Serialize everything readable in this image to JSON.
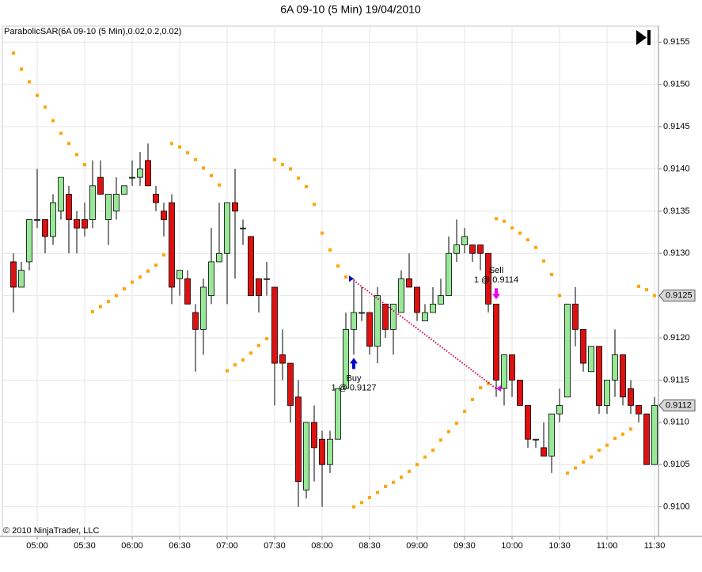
{
  "chart_data": {
    "type": "candlestick",
    "title": "6A 09-10 (5 Min)  19/04/2010",
    "copyright": "© 2010 NinjaTrader, LLC",
    "categories": [
      null,
      null,
      null,
      "05:00",
      null,
      null,
      null,
      null,
      null,
      "05:30",
      null,
      null,
      null,
      null,
      null,
      "06:00",
      null,
      null,
      null,
      null,
      null,
      "06:30",
      null,
      null,
      null,
      null,
      null,
      "07:00",
      null,
      null,
      null,
      null,
      null,
      "07:30",
      null,
      null,
      null,
      null,
      null,
      "08:00",
      null,
      null,
      null,
      null,
      null,
      "08:30",
      null,
      null,
      null,
      null,
      null,
      "09:00",
      null,
      null,
      null,
      null,
      null,
      "09:30",
      null,
      null,
      null,
      null,
      null,
      "10:00",
      null,
      null,
      null,
      null,
      null,
      "10:30",
      null,
      null,
      null,
      null,
      null,
      "11:00",
      null,
      null,
      null,
      null,
      null,
      "11:30"
    ],
    "open": [
      0.9129,
      0.9126,
      0.9129,
      0.9134,
      0.9134,
      0.9132,
      0.9135,
      0.9137,
      0.9134,
      0.9134,
      0.9134,
      0.9139,
      0.9134,
      0.9135,
      0.9137,
      0.9139,
      0.9139,
      0.9141,
      0.9137,
      0.9135,
      0.9136,
      0.9127,
      0.9127,
      0.9123,
      0.9121,
      0.9125,
      0.9129,
      0.913,
      0.9136,
      0.9133,
      0.9132,
      0.9127,
      0.9127,
      0.9126,
      0.9118,
      0.9117,
      0.9113,
      0.9102,
      0.911,
      0.9108,
      0.9105,
      0.9108,
      0.9114,
      0.9121,
      0.9123,
      0.9123,
      0.9119,
      0.9124,
      0.9121,
      0.9123,
      0.9127,
      0.9126,
      0.9122,
      0.9123,
      0.9124,
      0.9125,
      0.913,
      0.9131,
      0.9131,
      0.9131,
      0.913,
      0.9124,
      0.9114,
      0.9118,
      0.9115,
      0.9112,
      0.9108,
      0.9107,
      0.9106,
      0.9111,
      0.9113,
      0.9124,
      0.9121,
      0.9116,
      0.9119,
      0.9112,
      0.9115,
      0.9118,
      0.9114,
      0.9112,
      0.9111,
      0.9105
    ],
    "high": [
      0.913,
      0.9129,
      0.9134,
      0.914,
      0.9134,
      0.9137,
      0.9139,
      0.9138,
      0.9135,
      0.9136,
      0.9141,
      0.9141,
      0.9137,
      0.9139,
      0.9138,
      0.9141,
      0.9142,
      0.9143,
      0.9138,
      0.9136,
      0.9137,
      0.9128,
      0.9128,
      0.9124,
      0.9127,
      0.9133,
      0.9136,
      0.9136,
      0.914,
      0.9134,
      0.9132,
      0.9127,
      0.9129,
      0.9126,
      0.9121,
      0.9117,
      0.9115,
      0.911,
      0.9112,
      0.9109,
      0.9109,
      0.9114,
      0.9123,
      0.9127,
      0.9126,
      0.9123,
      0.9126,
      0.9124,
      0.9124,
      0.9128,
      0.913,
      0.9126,
      0.9124,
      0.9126,
      0.9127,
      0.9132,
      0.9134,
      0.9133,
      0.9131,
      0.9131,
      0.913,
      0.9124,
      0.9118,
      0.9118,
      0.9115,
      0.9112,
      0.9108,
      0.911,
      0.9111,
      0.9114,
      0.9124,
      0.9126,
      0.9121,
      0.9119,
      0.9119,
      0.9115,
      0.9121,
      0.9118,
      0.9115,
      0.9112,
      0.9111,
      0.9113
    ],
    "low": [
      0.9123,
      0.9126,
      0.9128,
      0.9133,
      0.913,
      0.9131,
      0.9134,
      0.913,
      0.913,
      0.9132,
      0.9133,
      0.9137,
      0.9131,
      0.9134,
      0.9137,
      0.9138,
      0.9138,
      0.9138,
      0.9135,
      0.9132,
      0.9124,
      0.9125,
      0.9124,
      0.9116,
      0.9118,
      0.9124,
      0.9129,
      0.9124,
      0.9127,
      0.9131,
      0.9125,
      0.9123,
      0.9125,
      0.9112,
      0.9115,
      0.911,
      0.91,
      0.9101,
      0.9103,
      0.91,
      0.9104,
      0.9108,
      0.9114,
      0.9118,
      0.9122,
      0.9118,
      0.9117,
      0.912,
      0.9118,
      0.9123,
      0.9126,
      0.9122,
      0.9122,
      0.9123,
      0.9124,
      0.9125,
      0.9129,
      0.913,
      0.9129,
      0.9128,
      0.9123,
      0.9113,
      0.9112,
      0.9113,
      0.9112,
      0.9107,
      0.9107,
      0.9106,
      0.9104,
      0.911,
      0.9113,
      0.9119,
      0.9116,
      0.9116,
      0.9111,
      0.9111,
      0.9113,
      0.9112,
      0.9111,
      0.911,
      0.9105,
      0.9105
    ],
    "close": [
      0.9126,
      0.9128,
      0.9134,
      0.9134,
      0.9132,
      0.9136,
      0.9139,
      0.9134,
      0.9133,
      0.9133,
      0.9138,
      0.9137,
      0.9137,
      0.9137,
      0.9138,
      0.9139,
      0.914,
      0.9138,
      0.9136,
      0.9134,
      0.9126,
      0.9128,
      0.9124,
      0.9121,
      0.9126,
      0.9129,
      0.913,
      0.9136,
      0.9135,
      0.9133,
      0.9125,
      0.9125,
      0.9127,
      0.9117,
      0.9117,
      0.9112,
      0.9103,
      0.911,
      0.9107,
      0.9105,
      0.9108,
      0.9114,
      0.9121,
      0.9123,
      0.9123,
      0.9119,
      0.9125,
      0.9121,
      0.9124,
      0.9127,
      0.9126,
      0.9123,
      0.9123,
      0.9124,
      0.9125,
      0.913,
      0.9131,
      0.9132,
      0.913,
      0.913,
      0.9124,
      0.9115,
      0.9118,
      0.9115,
      0.9112,
      0.9108,
      0.9108,
      0.9106,
      0.9111,
      0.9112,
      0.9124,
      0.9121,
      0.9117,
      0.9119,
      0.9112,
      0.9115,
      0.9118,
      0.9113,
      0.9112,
      0.9111,
      0.9105,
      0.9112
    ],
    "up_color": "#98e898",
    "down_color": "#dd1111",
    "sar": {
      "name": "ParabolicSAR(6A 09-10 (5 Min),0.02,0.2,0.02)",
      "color": "#ffa500",
      "values": [
        0.91537,
        0.91518,
        0.91503,
        0.91487,
        0.91473,
        0.91457,
        0.91442,
        0.9143,
        0.91417,
        0.91405,
        0.91231,
        0.91237,
        0.91243,
        0.9125,
        0.91258,
        0.91266,
        0.91272,
        0.91279,
        0.91286,
        0.91298,
        0.9143,
        0.91426,
        0.91419,
        0.91411,
        0.91401,
        0.91392,
        0.91381,
        0.91161,
        0.91168,
        0.91174,
        0.91182,
        0.91191,
        0.91199,
        0.91411,
        0.91405,
        0.914,
        0.91389,
        0.91379,
        0.91358,
        0.91324,
        0.91304,
        0.91285,
        0.91272,
        0.91,
        0.91005,
        0.91011,
        0.91017,
        0.91024,
        0.91029,
        0.91035,
        0.91042,
        0.9105,
        0.91059,
        0.91067,
        0.91079,
        0.91089,
        0.91099,
        0.91113,
        0.91127,
        0.91141,
        0.91146,
        0.91341,
        0.91338,
        0.9133,
        0.91324,
        0.91316,
        0.91307,
        0.91291,
        0.91275,
        0.9125,
        0.9104,
        0.91046,
        0.91053,
        0.91059,
        0.91067,
        0.91073,
        0.91081,
        0.91086,
        0.91092,
        0.91261,
        0.91257,
        0.9125
      ]
    },
    "trades": [
      {
        "label": "Buy",
        "detail": "1 @ 0.9127",
        "bar": 43,
        "price": 0.9127,
        "direction": "up",
        "color": "#0000cc"
      },
      {
        "label": "Sell",
        "detail": "1 @ 0.9114",
        "bar": 61,
        "price": 0.9114,
        "direction": "down",
        "color": "#ee00ee"
      }
    ],
    "trade_line_color": "#cc1155",
    "price_markers": [
      {
        "value": 0.9125,
        "color": "#d8d8d8"
      },
      {
        "value": 0.9112,
        "color": "#d8d8d8"
      }
    ],
    "ylim": [
      0.90965,
      0.91569
    ],
    "yticks": [
      {
        "value": 0.91,
        "label": "0.9100"
      },
      0.9105,
      {
        "value": 0.911,
        "label": "0.9110"
      },
      0.9115,
      {
        "value": 0.912,
        "label": "0.9120"
      },
      0.9125,
      {
        "value": 0.913,
        "label": "0.9130"
      },
      0.9135,
      {
        "value": 0.914,
        "label": "0.9140"
      },
      0.9145,
      {
        "value": 0.915,
        "label": "0.9150"
      },
      0.9155
    ],
    "grid": true
  }
}
